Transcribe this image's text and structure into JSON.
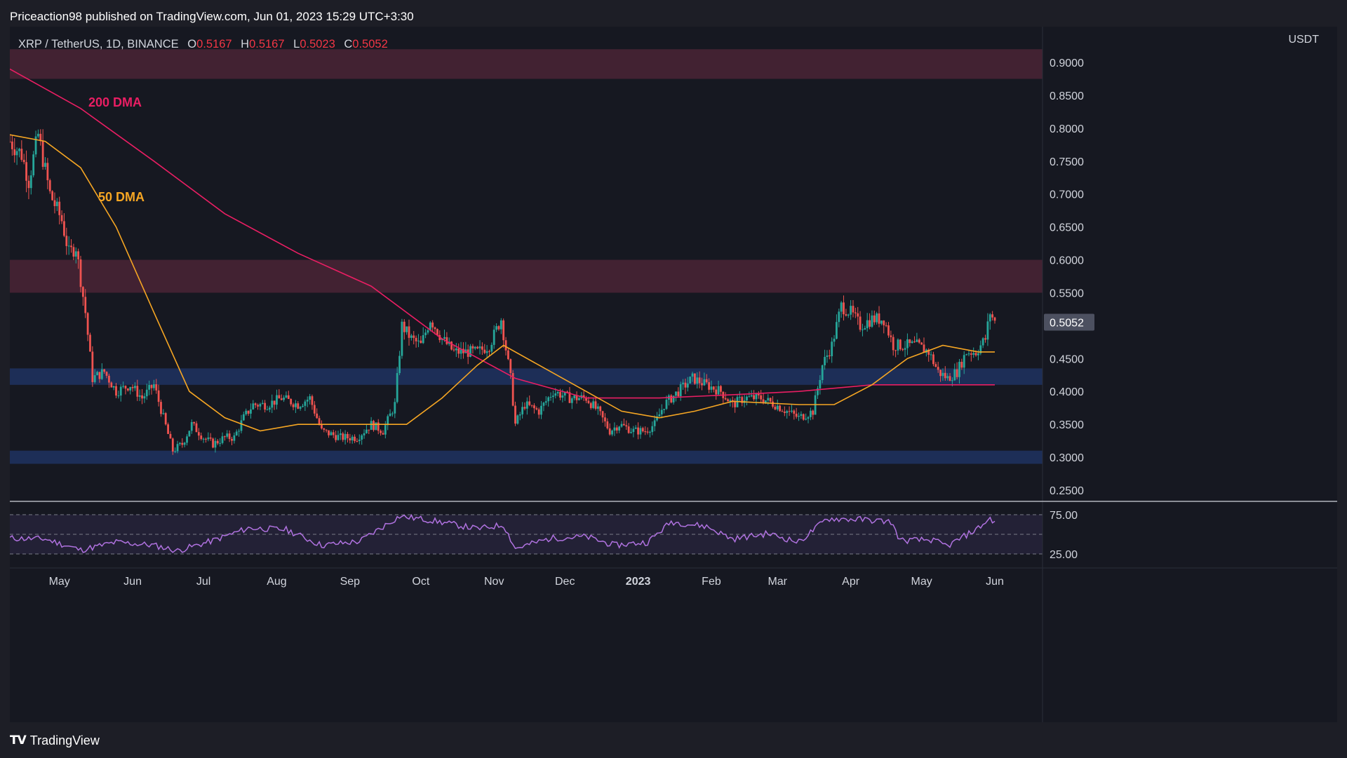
{
  "header": {
    "publisher": "Priceaction98 published on TradingView.com, Jun 01, 2023 15:29 UTC+3:30"
  },
  "symbol_bar": {
    "symbol": "XRP / TetherUS, 1D, BINANCE",
    "open_label": "O",
    "open": "0.5167",
    "high_label": "H",
    "high": "0.5167",
    "low_label": "L",
    "low": "0.5023",
    "close_label": "C",
    "close": "0.5052"
  },
  "price_axis": {
    "unit": "USDT",
    "ticks": [
      "0.9000",
      "0.8500",
      "0.8000",
      "0.7500",
      "0.7000",
      "0.6500",
      "0.6000",
      "0.5500",
      "0.4500",
      "0.4000",
      "0.3500",
      "0.3000",
      "0.2500"
    ],
    "current_price": "0.5052"
  },
  "rsi_axis": {
    "ticks": [
      "75.00",
      "25.00"
    ]
  },
  "time_axis": {
    "labels": [
      "May",
      "Jun",
      "Jul",
      "Aug",
      "Sep",
      "Oct",
      "Nov",
      "Dec",
      "2023",
      "Feb",
      "Mar",
      "Apr",
      "May",
      "Jun"
    ]
  },
  "annotations": {
    "dma200": "200 DMA",
    "dma50": "50 DMA"
  },
  "footer": {
    "brand": "TradingView"
  },
  "colors": {
    "background": "#161821",
    "up_candle": "#26a69a",
    "down_candle": "#ef5350",
    "dma200": "#e91e63",
    "dma50": "#f6a623",
    "rsi": "#b072e0",
    "resistance_zone": "#4a2535",
    "support_zone": "#1e3360",
    "price_label_bg": "#4c5060"
  },
  "chart_data": {
    "type": "candlestick",
    "symbol": "XRP / TetherUS",
    "timeframe": "1D",
    "exchange": "BINANCE",
    "y_unit": "USDT",
    "ylim": [
      0.22,
      0.93
    ],
    "last_close": 0.5052,
    "zones": [
      {
        "kind": "resistance",
        "from": 0.875,
        "to": 0.92
      },
      {
        "kind": "resistance",
        "from": 0.55,
        "to": 0.6
      },
      {
        "kind": "support",
        "from": 0.41,
        "to": 0.435
      },
      {
        "kind": "support",
        "from": 0.29,
        "to": 0.31
      }
    ],
    "close_path": [
      [
        "2022-04-10",
        0.78
      ],
      [
        "2022-04-15",
        0.76
      ],
      [
        "2022-04-18",
        0.72
      ],
      [
        "2022-04-22",
        0.79
      ],
      [
        "2022-04-27",
        0.7
      ],
      [
        "2022-05-02",
        0.66
      ],
      [
        "2022-05-05",
        0.61
      ],
      [
        "2022-05-08",
        0.62
      ],
      [
        "2022-05-12",
        0.52
      ],
      [
        "2022-05-15",
        0.42
      ],
      [
        "2022-05-20",
        0.43
      ],
      [
        "2022-05-25",
        0.4
      ],
      [
        "2022-05-31",
        0.41
      ],
      [
        "2022-06-05",
        0.39
      ],
      [
        "2022-06-10",
        0.41
      ],
      [
        "2022-06-14",
        0.36
      ],
      [
        "2022-06-18",
        0.31
      ],
      [
        "2022-06-22",
        0.32
      ],
      [
        "2022-06-26",
        0.35
      ],
      [
        "2022-07-01",
        0.33
      ],
      [
        "2022-07-05",
        0.32
      ],
      [
        "2022-07-10",
        0.33
      ],
      [
        "2022-07-14",
        0.33
      ],
      [
        "2022-07-18",
        0.36
      ],
      [
        "2022-07-22",
        0.38
      ],
      [
        "2022-07-28",
        0.38
      ],
      [
        "2022-08-03",
        0.39
      ],
      [
        "2022-08-10",
        0.38
      ],
      [
        "2022-08-15",
        0.39
      ],
      [
        "2022-08-20",
        0.34
      ],
      [
        "2022-08-28",
        0.33
      ],
      [
        "2022-09-04",
        0.33
      ],
      [
        "2022-09-10",
        0.35
      ],
      [
        "2022-09-15",
        0.34
      ],
      [
        "2022-09-20",
        0.38
      ],
      [
        "2022-09-23",
        0.5
      ],
      [
        "2022-09-27",
        0.48
      ],
      [
        "2022-10-01",
        0.47
      ],
      [
        "2022-10-05",
        0.51
      ],
      [
        "2022-10-10",
        0.48
      ],
      [
        "2022-10-15",
        0.46
      ],
      [
        "2022-10-20",
        0.46
      ],
      [
        "2022-10-25",
        0.46
      ],
      [
        "2022-10-30",
        0.47
      ],
      [
        "2022-11-04",
        0.51
      ],
      [
        "2022-11-08",
        0.42
      ],
      [
        "2022-11-10",
        0.35
      ],
      [
        "2022-11-14",
        0.38
      ],
      [
        "2022-11-20",
        0.37
      ],
      [
        "2022-11-26",
        0.4
      ],
      [
        "2022-12-03",
        0.39
      ],
      [
        "2022-12-10",
        0.39
      ],
      [
        "2022-12-15",
        0.37
      ],
      [
        "2022-12-20",
        0.34
      ],
      [
        "2022-12-24",
        0.35
      ],
      [
        "2022-12-30",
        0.34
      ],
      [
        "2023-01-04",
        0.34
      ],
      [
        "2023-01-08",
        0.35
      ],
      [
        "2023-01-12",
        0.38
      ],
      [
        "2023-01-18",
        0.4
      ],
      [
        "2023-01-24",
        0.42
      ],
      [
        "2023-01-30",
        0.41
      ],
      [
        "2023-02-05",
        0.4
      ],
      [
        "2023-02-10",
        0.38
      ],
      [
        "2023-02-15",
        0.39
      ],
      [
        "2023-02-22",
        0.39
      ],
      [
        "2023-02-28",
        0.38
      ],
      [
        "2023-03-05",
        0.37
      ],
      [
        "2023-03-10",
        0.36
      ],
      [
        "2023-03-16",
        0.37
      ],
      [
        "2023-03-20",
        0.44
      ],
      [
        "2023-03-24",
        0.47
      ],
      [
        "2023-03-28",
        0.53
      ],
      [
        "2023-04-01",
        0.52
      ],
      [
        "2023-04-05",
        0.5
      ],
      [
        "2023-04-10",
        0.51
      ],
      [
        "2023-04-15",
        0.51
      ],
      [
        "2023-04-19",
        0.47
      ],
      [
        "2023-04-24",
        0.47
      ],
      [
        "2023-04-29",
        0.47
      ],
      [
        "2023-05-04",
        0.46
      ],
      [
        "2023-05-08",
        0.43
      ],
      [
        "2023-05-12",
        0.42
      ],
      [
        "2023-05-16",
        0.43
      ],
      [
        "2023-05-20",
        0.46
      ],
      [
        "2023-05-24",
        0.46
      ],
      [
        "2023-05-28",
        0.48
      ],
      [
        "2023-05-30",
        0.52
      ],
      [
        "2023-06-01",
        0.5052
      ]
    ],
    "series": [
      {
        "name": "200 DMA",
        "values": [
          [
            "2022-04-10",
            0.89
          ],
          [
            "2022-05-10",
            0.83
          ],
          [
            "2022-06-10",
            0.75
          ],
          [
            "2022-07-10",
            0.67
          ],
          [
            "2022-08-10",
            0.61
          ],
          [
            "2022-09-10",
            0.56
          ],
          [
            "2022-10-10",
            0.48
          ],
          [
            "2022-11-10",
            0.42
          ],
          [
            "2022-12-10",
            0.39
          ],
          [
            "2023-01-10",
            0.39
          ],
          [
            "2023-02-10",
            0.395
          ],
          [
            "2023-03-10",
            0.4
          ],
          [
            "2023-04-10",
            0.41
          ],
          [
            "2023-05-10",
            0.41
          ],
          [
            "2023-06-01",
            0.41
          ]
        ]
      },
      {
        "name": "50 DMA",
        "values": [
          [
            "2022-04-10",
            0.79
          ],
          [
            "2022-04-25",
            0.78
          ],
          [
            "2022-05-10",
            0.74
          ],
          [
            "2022-05-25",
            0.65
          ],
          [
            "2022-06-10",
            0.52
          ],
          [
            "2022-06-25",
            0.4
          ],
          [
            "2022-07-10",
            0.36
          ],
          [
            "2022-07-25",
            0.34
          ],
          [
            "2022-08-10",
            0.35
          ],
          [
            "2022-09-10",
            0.35
          ],
          [
            "2022-09-25",
            0.35
          ],
          [
            "2022-10-10",
            0.39
          ],
          [
            "2022-10-25",
            0.44
          ],
          [
            "2022-11-05",
            0.47
          ],
          [
            "2022-11-20",
            0.44
          ],
          [
            "2022-12-10",
            0.4
          ],
          [
            "2022-12-25",
            0.37
          ],
          [
            "2023-01-10",
            0.36
          ],
          [
            "2023-01-25",
            0.37
          ],
          [
            "2023-02-10",
            0.385
          ],
          [
            "2023-03-10",
            0.38
          ],
          [
            "2023-03-25",
            0.38
          ],
          [
            "2023-04-10",
            0.41
          ],
          [
            "2023-04-25",
            0.45
          ],
          [
            "2023-05-10",
            0.47
          ],
          [
            "2023-05-25",
            0.46
          ],
          [
            "2023-06-01",
            0.46
          ]
        ]
      }
    ],
    "rsi": {
      "levels": [
        75,
        50,
        25
      ],
      "values": [
        [
          "2022-04-10",
          45
        ],
        [
          "2022-04-25",
          44
        ],
        [
          "2022-05-10",
          30
        ],
        [
          "2022-05-25",
          40
        ],
        [
          "2022-06-10",
          36
        ],
        [
          "2022-06-20",
          29
        ],
        [
          "2022-07-05",
          42
        ],
        [
          "2022-07-20",
          58
        ],
        [
          "2022-08-05",
          56
        ],
        [
          "2022-08-20",
          36
        ],
        [
          "2022-09-05",
          41
        ],
        [
          "2022-09-22",
          73
        ],
        [
          "2022-10-05",
          68
        ],
        [
          "2022-10-25",
          57
        ],
        [
          "2022-11-05",
          62
        ],
        [
          "2022-11-10",
          32
        ],
        [
          "2022-11-25",
          45
        ],
        [
          "2022-12-10",
          47
        ],
        [
          "2022-12-22",
          36
        ],
        [
          "2023-01-05",
          40
        ],
        [
          "2023-01-15",
          66
        ],
        [
          "2023-01-30",
          60
        ],
        [
          "2023-02-10",
          44
        ],
        [
          "2023-02-25",
          51
        ],
        [
          "2023-03-10",
          40
        ],
        [
          "2023-03-22",
          70
        ],
        [
          "2023-04-05",
          69
        ],
        [
          "2023-04-18",
          66
        ],
        [
          "2023-04-22",
          42
        ],
        [
          "2023-05-05",
          43
        ],
        [
          "2023-05-12",
          35
        ],
        [
          "2023-05-25",
          58
        ],
        [
          "2023-05-30",
          70
        ],
        [
          "2023-06-01",
          66
        ]
      ]
    }
  }
}
